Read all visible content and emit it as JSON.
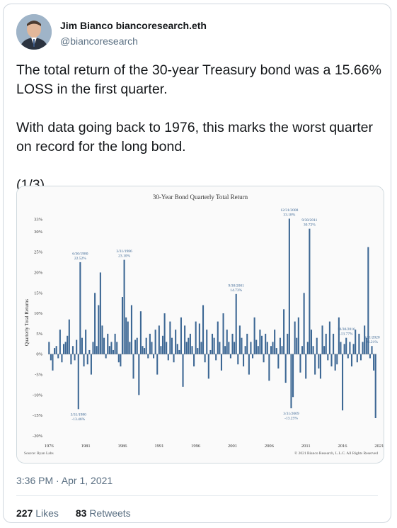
{
  "user": {
    "name": "Jim Bianco biancoresearch.eth",
    "handle": "@biancoresearch"
  },
  "tweet": {
    "paragraphs": [
      "The total return of the 30-year Treasury bond was a 15.66% LOSS in the first quarter.",
      "With data going back to 1976, this marks the worst quarter on record for the long bond.",
      "(1/3)"
    ],
    "timestamp": "3:36 PM · Apr 1, 2021"
  },
  "stats": {
    "likes_count": "227",
    "likes_label": "Likes",
    "retweets_count": "83",
    "retweets_label": "Retweets"
  },
  "colors": {
    "bar": "#3c6794",
    "annotation": "#3c6794",
    "text_secondary": "#5b7083"
  },
  "icons": {
    "avatar": "profile-photo"
  },
  "chart_data": {
    "type": "bar",
    "title": "30-Year Bond Quarterly Total Return",
    "ylabel": "Quarterly Total Returns",
    "xlabel": "",
    "ylim": [
      -20,
      35
    ],
    "yticks": [
      -20,
      -15,
      -10,
      -5,
      0,
      5,
      10,
      15,
      20,
      25,
      30,
      33
    ],
    "ytick_labels": [
      "-20%",
      "-15%",
      "-10%",
      "-5%",
      "0%",
      "5%",
      "10%",
      "15%",
      "20%",
      "25%",
      "30%",
      "33%"
    ],
    "xticks": [
      "1976",
      "1981",
      "1986",
      "1991",
      "1996",
      "2001",
      "2006",
      "2011",
      "2016",
      "2021"
    ],
    "source": "Source: Ryan Labs",
    "copyright": "© 2021 Bianco Research, L.L.C. All Rights Reserved",
    "start_year": 1976,
    "annotations": [
      {
        "lines": [
          "6/30/1980",
          "22.52%"
        ],
        "index": 17
      },
      {
        "lines": [
          "3/31/1980",
          "-13.46%"
        ],
        "index": 16
      },
      {
        "lines": [
          "3/31/1986",
          "23.10%"
        ],
        "index": 41
      },
      {
        "lines": [
          "9/30/2001",
          "14.73%"
        ],
        "index": 102
      },
      {
        "lines": [
          "12/31/2008",
          "33.18%"
        ],
        "index": 131
      },
      {
        "lines": [
          "3/31/2009",
          "-13.25%"
        ],
        "index": 132
      },
      {
        "lines": [
          "9/30/2011",
          "30.72%"
        ],
        "index": 142
      },
      {
        "lines": [
          "10/30/2016",
          "-13.77%"
        ],
        "index": 162
      },
      {
        "lines": [
          "3/31/2020",
          "26.21%"
        ],
        "index": 176
      },
      {
        "lines": [
          "3/31/2021",
          "-15.66%"
        ],
        "index": 180
      }
    ],
    "values": [
      3.0,
      -1.5,
      -4.0,
      1.5,
      2.0,
      -1.0,
      6.0,
      -2.0,
      2.5,
      3.0,
      4.5,
      8.5,
      -2.5,
      2.0,
      -1.5,
      3.5,
      -13.46,
      22.52,
      4.0,
      -3.0,
      6.0,
      -2.5,
      1.0,
      -5.0,
      3.0,
      15.0,
      2.0,
      12.0,
      20.0,
      7.0,
      4.0,
      -1.0,
      5.0,
      2.0,
      3.0,
      1.0,
      5.0,
      3.0,
      -2.0,
      -3.0,
      14.0,
      23.1,
      9.0,
      8.0,
      3.0,
      12.0,
      -6.0,
      3.5,
      4.0,
      -10.0,
      10.5,
      2.0,
      1.5,
      4.0,
      -1.0,
      5.0,
      3.0,
      -1.0,
      6.0,
      -5.0,
      7.0,
      2.0,
      4.5,
      10.0,
      3.0,
      -1.5,
      8.0,
      4.0,
      -2.0,
      6.0,
      2.5,
      1.0,
      9.0,
      -8.0,
      7.0,
      3.0,
      4.0,
      5.0,
      2.0,
      -3.0,
      8.0,
      1.5,
      7.5,
      3.0,
      12.0,
      -2.0,
      6.0,
      -6.0,
      1.0,
      5.0,
      4.0,
      -1.5,
      8.0,
      3.0,
      -4.0,
      10.0,
      2.0,
      6.0,
      3.0,
      -1.0,
      5.0,
      3.0,
      14.73,
      -2.5,
      7.0,
      4.0,
      -3.0,
      2.0,
      5.0,
      -5.0,
      3.0,
      -1.0,
      9.0,
      3.5,
      2.0,
      6.0,
      4.5,
      -2.0,
      5.0,
      3.0,
      -6.5,
      2.0,
      3.0,
      6.0,
      1.5,
      -3.5,
      4.0,
      2.0,
      11.0,
      -7.0,
      5.0,
      33.18,
      -13.25,
      -10.5,
      8.0,
      4.0,
      9.0,
      -4.5,
      2.0,
      15.0,
      -6.0,
      3.0,
      30.72,
      6.0,
      2.0,
      -5.0,
      4.0,
      -3.5,
      -6.0,
      7.0,
      2.0,
      5.0,
      -1.5,
      8.0,
      -3.0,
      5.0,
      -4.0,
      -2.5,
      9.0,
      3.0,
      -13.77,
      2.5,
      4.0,
      -1.0,
      3.0,
      -3.0,
      2.5,
      6.0,
      -2.0,
      5.0,
      -1.5,
      3.0,
      7.0,
      4.0,
      26.21,
      -1.0,
      2.0,
      -4.0,
      -15.66
    ]
  }
}
